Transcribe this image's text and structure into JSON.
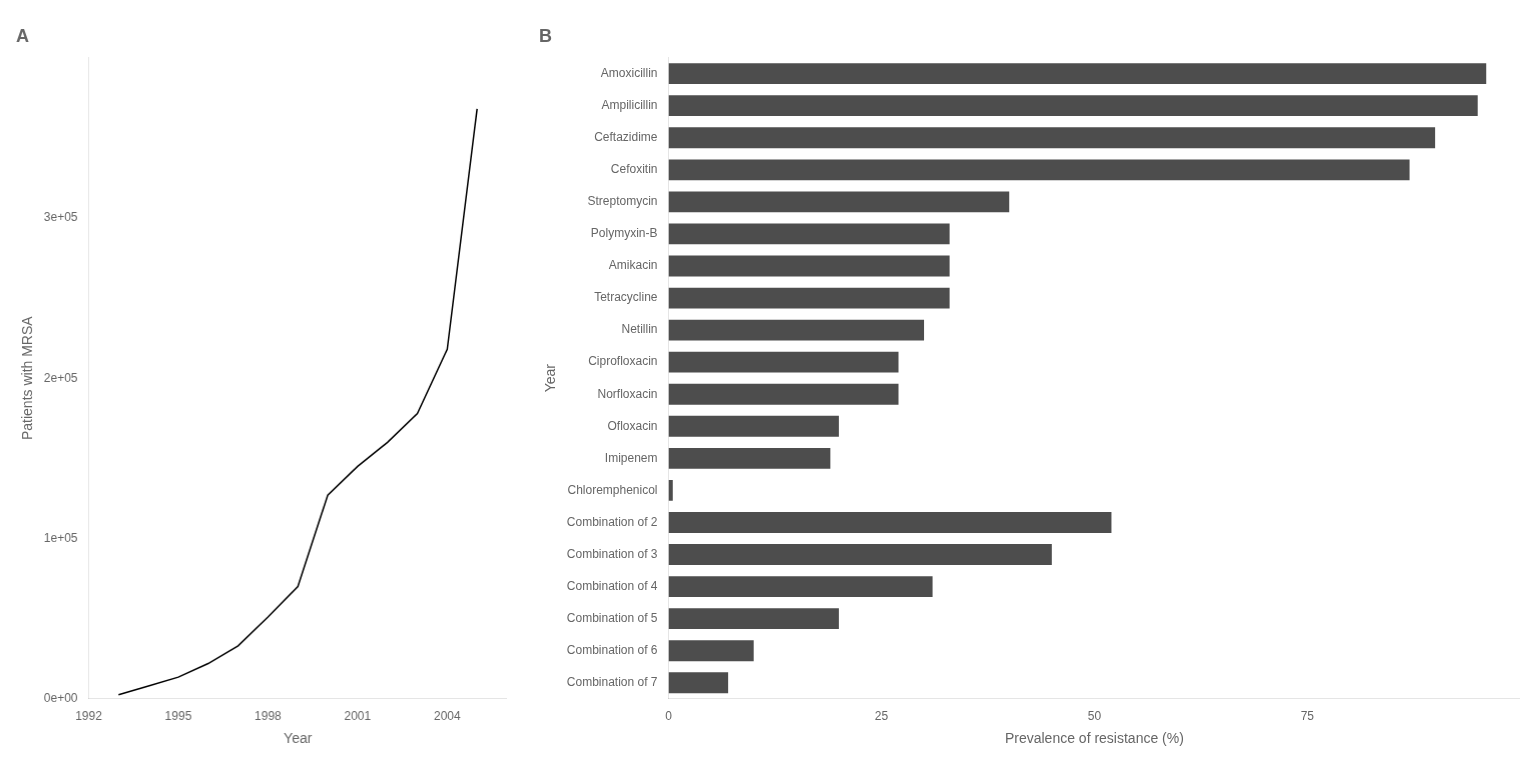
{
  "chart_data": [
    {
      "type": "line",
      "title": "A",
      "x": [
        1993,
        1994,
        1995,
        1996,
        1997,
        1998,
        1999,
        2000,
        2001,
        2002,
        2003,
        2004,
        2005
      ],
      "values": [
        2500,
        8000,
        13500,
        22000,
        33000,
        51000,
        70000,
        127000,
        145000,
        160000,
        178000,
        218000,
        368000
      ],
      "color": "#000000",
      "xlabel": "Year",
      "ylabel": "Patients with MRSA",
      "xlim": [
        1992,
        2006
      ],
      "xticks": [
        1992,
        1995,
        1998,
        2001,
        2004
      ],
      "ylim": [
        0,
        400000
      ],
      "yticks": [
        {
          "value": 0,
          "label": "0e+00"
        },
        {
          "value": 100000,
          "label": "1e+05"
        },
        {
          "value": 200000,
          "label": "2e+05"
        },
        {
          "value": 300000,
          "label": "3e+05"
        }
      ],
      "grid": false
    },
    {
      "type": "bar",
      "orientation": "horizontal",
      "title": "B",
      "categories": [
        "Amoxicillin",
        "Ampilicillin",
        "Ceftazidime",
        "Cefoxitin",
        "Streptomycin",
        "Polymyxin-B",
        "Amikacin",
        "Tetracycline",
        "Netillin",
        "Ciprofloxacin",
        "Norfloxacin",
        "Ofloxacin",
        "Imipenem",
        "Chloremphenicol",
        "Combination of 2",
        "Combination of 3",
        "Combination of 4",
        "Combination of 5",
        "Combination of 6",
        "Combination of 7"
      ],
      "values": [
        96,
        95,
        90,
        87,
        40,
        33,
        33,
        33,
        30,
        27,
        27,
        20,
        19,
        0.5,
        52,
        45,
        31,
        20,
        10,
        7
      ],
      "color": "#4d4d4d",
      "xlabel": "Prevalence of resistance (%)",
      "ylabel": "Year",
      "xlim": [
        0,
        100
      ],
      "xticks": [
        0,
        25,
        50,
        75
      ],
      "grid": false
    }
  ]
}
